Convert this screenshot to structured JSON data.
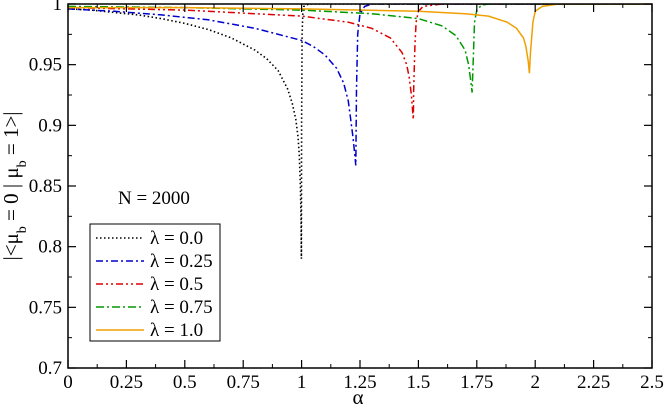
{
  "chart_data": {
    "type": "line",
    "xlabel": "α",
    "ylabel": "|<μ_b = 0 | μ_b = 1>|",
    "xlim": [
      0,
      2.5
    ],
    "ylim": [
      0.7,
      1.0
    ],
    "xticks": [
      "0",
      "0.25",
      "0.5",
      "0.75",
      "1",
      "1.25",
      "1.5",
      "1.75",
      "2",
      "2.25",
      "2.5"
    ],
    "yticks": [
      "0.7",
      "0.75",
      "0.8",
      "0.85",
      "0.9",
      "0.95",
      "1"
    ],
    "annotation": "N = 2000",
    "grid": false,
    "legend_position": "bottom-left",
    "series": [
      {
        "name": "λ = 0.0",
        "color": "#000000",
        "style": "dotted",
        "x": [
          0,
          0.1,
          0.2,
          0.3,
          0.4,
          0.5,
          0.6,
          0.7,
          0.8,
          0.85,
          0.9,
          0.94,
          0.96,
          0.975,
          0.985,
          0.99,
          0.995,
          0.998,
          0.999,
          1.0,
          1.002,
          1.005,
          1.01,
          1.03,
          1.1,
          1.3,
          1.5,
          2.0,
          2.5
        ],
        "y": [
          0.996,
          0.995,
          0.993,
          0.991,
          0.988,
          0.984,
          0.979,
          0.972,
          0.962,
          0.955,
          0.945,
          0.93,
          0.918,
          0.905,
          0.89,
          0.875,
          0.85,
          0.82,
          0.79,
          0.9,
          0.975,
          0.992,
          0.998,
          1.0,
          1.0,
          1.0,
          1.0,
          1.0,
          1.0
        ]
      },
      {
        "name": "λ = 0.25",
        "color": "#0000cc",
        "style": "dash-dot",
        "x": [
          0,
          0.2,
          0.4,
          0.6,
          0.8,
          1.0,
          1.05,
          1.1,
          1.15,
          1.18,
          1.2,
          1.21,
          1.22,
          1.228,
          1.232,
          1.235,
          1.24,
          1.25,
          1.27,
          1.3,
          1.5,
          2.0,
          2.5
        ],
        "y": [
          0.996,
          0.994,
          0.991,
          0.987,
          0.98,
          0.97,
          0.965,
          0.958,
          0.947,
          0.935,
          0.92,
          0.905,
          0.89,
          0.875,
          0.867,
          0.93,
          0.975,
          0.992,
          0.998,
          1.0,
          1.0,
          1.0,
          1.0
        ]
      },
      {
        "name": "λ = 0.5",
        "color": "#dd0000",
        "style": "dash-dot-dot",
        "x": [
          0,
          0.5,
          1.0,
          1.2,
          1.3,
          1.38,
          1.43,
          1.45,
          1.46,
          1.47,
          1.475,
          1.478,
          1.48,
          1.485,
          1.49,
          1.5,
          1.52,
          1.6,
          2.0,
          2.5
        ],
        "y": [
          0.997,
          0.995,
          0.99,
          0.985,
          0.98,
          0.972,
          0.96,
          0.95,
          0.94,
          0.925,
          0.912,
          0.905,
          0.93,
          0.965,
          0.985,
          0.994,
          0.998,
          1.0,
          1.0,
          1.0
        ]
      },
      {
        "name": "λ = 0.75",
        "color": "#009900",
        "style": "dash-dot-dash",
        "x": [
          0,
          0.5,
          1.0,
          1.3,
          1.5,
          1.6,
          1.66,
          1.7,
          1.715,
          1.725,
          1.73,
          1.735,
          1.74,
          1.75,
          1.77,
          1.8,
          2.0,
          2.5
        ],
        "y": [
          0.998,
          0.997,
          0.995,
          0.992,
          0.988,
          0.982,
          0.974,
          0.962,
          0.95,
          0.935,
          0.927,
          0.955,
          0.985,
          0.995,
          0.999,
          1.0,
          1.0,
          1.0
        ]
      },
      {
        "name": "λ = 1.0",
        "color": "#f0a000",
        "style": "solid",
        "x": [
          0,
          0.5,
          1.0,
          1.5,
          1.7,
          1.8,
          1.88,
          1.92,
          1.95,
          1.96,
          1.97,
          1.975,
          1.98,
          1.99,
          2.0,
          2.03,
          2.1,
          2.5
        ],
        "y": [
          0.997,
          0.997,
          0.996,
          0.994,
          0.992,
          0.99,
          0.985,
          0.98,
          0.972,
          0.965,
          0.953,
          0.943,
          0.96,
          0.985,
          0.994,
          0.998,
          1.0,
          1.0
        ]
      }
    ]
  }
}
